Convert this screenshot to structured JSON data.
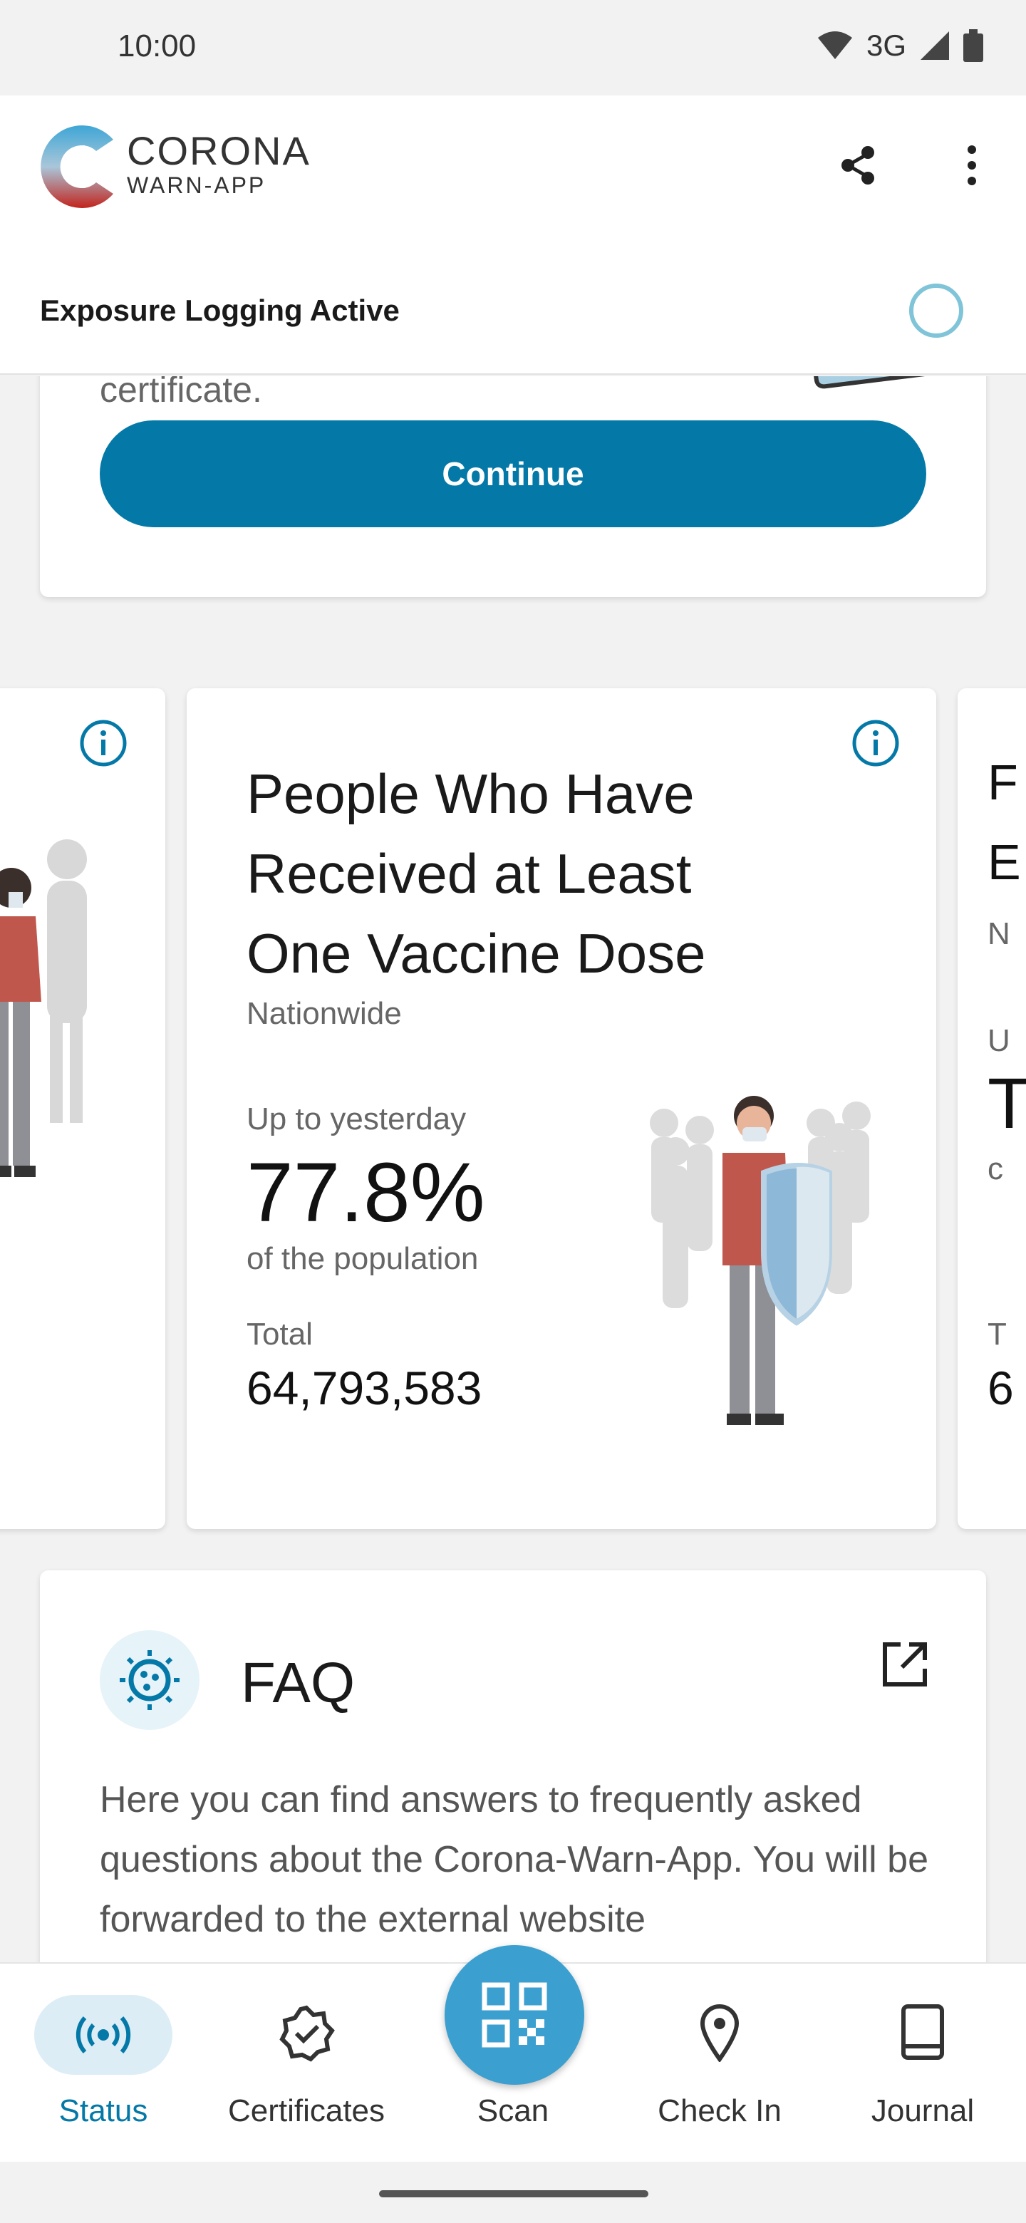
{
  "status_bar": {
    "time": "10:00",
    "network": "3G"
  },
  "app_bar": {
    "brand_line1": "CORONA",
    "brand_line2": "WARN-APP"
  },
  "exposure": {
    "label": "Exposure Logging Active",
    "ring_color": "#7fc4d8"
  },
  "top_card": {
    "partial_text": "certificate.",
    "button_label": "Continue"
  },
  "stat_card": {
    "title": "People Who Have Received at Least One Vaccine Dose",
    "region": "Nationwide",
    "period_label": "Up to yesterday",
    "percentage": "77.8%",
    "percentage_suffix": "of the population",
    "total_label": "Total",
    "total_value": "64,793,583"
  },
  "right_peek": {
    "c1": "F",
    "c2": "E",
    "c3": "N",
    "c4": "U",
    "c5": "T",
    "c6": "c",
    "c7": "T",
    "c8": "6"
  },
  "faq": {
    "title": "FAQ",
    "description": "Here you can find answers to frequently asked questions about the Corona-Warn-App. You will be forwarded to the external website"
  },
  "bottom_nav": {
    "items": [
      {
        "label": "Status",
        "icon": "broadcast-icon",
        "active": true
      },
      {
        "label": "Certificates",
        "icon": "certificate-badge-icon"
      },
      {
        "label": "Scan",
        "icon": "qr-code-icon"
      },
      {
        "label": "Check In",
        "icon": "location-pin-icon"
      },
      {
        "label": "Journal",
        "icon": "book-icon"
      }
    ]
  },
  "colors": {
    "primary": "#0479a8",
    "fab": "#3b9fd0",
    "pill": "#dcedf6"
  }
}
